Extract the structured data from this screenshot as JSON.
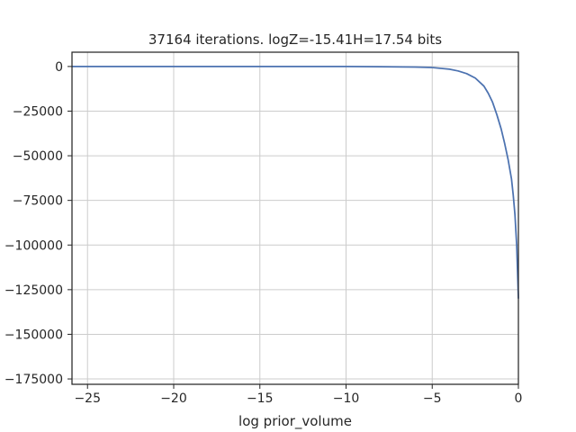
{
  "chart_data": {
    "type": "line",
    "title": "37164 iterations. logZ=-15.41H=17.54 bits",
    "xlabel": "log prior_volume",
    "ylabel": "",
    "xlim": [
      -25.9,
      0
    ],
    "ylim": [
      -178000,
      8000
    ],
    "grid": true,
    "x_ticks": [
      -25,
      -20,
      -15,
      -10,
      -5,
      0
    ],
    "x_tick_labels": [
      "−25",
      "−20",
      "−15",
      "−10",
      "−5",
      "0"
    ],
    "y_ticks": [
      0,
      -25000,
      -50000,
      -75000,
      -100000,
      -125000,
      -150000,
      -175000
    ],
    "y_tick_labels": [
      "0",
      "−25000",
      "−50000",
      "−75000",
      "−100000",
      "−125000",
      "−150000",
      "−175000"
    ],
    "series": [
      {
        "color": "#4c72b0",
        "x": [
          -25.9,
          -20,
          -15,
          -10,
          -8,
          -6,
          -5,
          -4,
          -3.5,
          -3,
          -2.5,
          -2,
          -1.75,
          -1.5,
          -1.25,
          -1,
          -0.8,
          -0.6,
          -0.4,
          -0.3,
          -0.2,
          -0.1,
          -0.05,
          0
        ],
        "y": [
          0,
          0,
          0,
          0,
          -100,
          -300,
          -600,
          -1500,
          -2500,
          -4000,
          -6500,
          -11000,
          -15000,
          -20000,
          -27000,
          -35000,
          -43000,
          -52000,
          -63000,
          -72000,
          -83000,
          -100000,
          -115000,
          -130000
        ]
      }
    ]
  }
}
